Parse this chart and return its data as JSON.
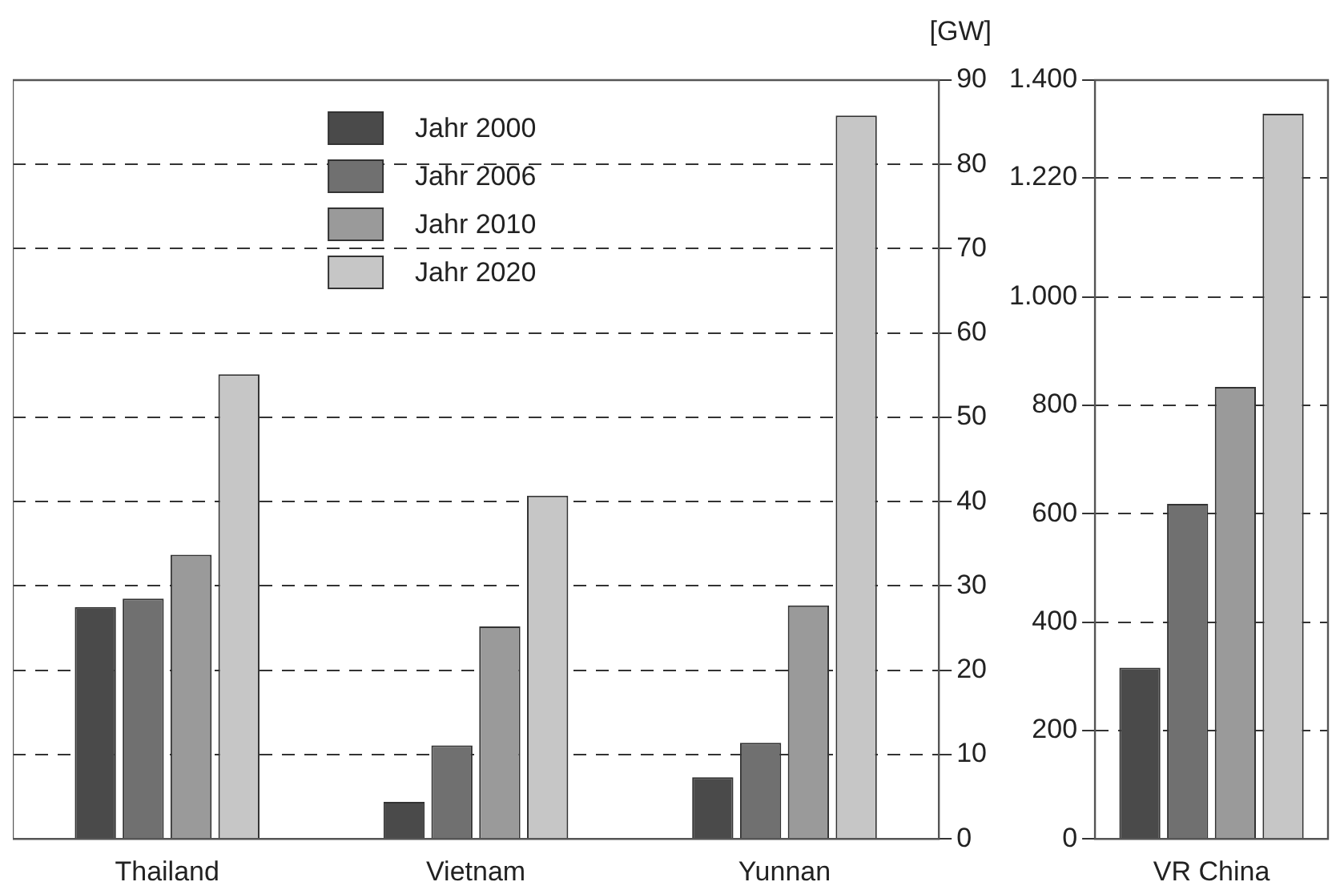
{
  "chart_data": [
    {
      "type": "bar",
      "ylabel": "[GW]",
      "categories": [
        "Thailand",
        "Vietnam",
        "Yunnan"
      ],
      "series": [
        {
          "name": "Jahr 2000",
          "color": "#4a4a4a",
          "values": [
            27.5,
            4.4,
            7.3
          ]
        },
        {
          "name": "Jahr 2006",
          "color": "#707070",
          "values": [
            28.5,
            11.1,
            11.4
          ]
        },
        {
          "name": "Jahr 2010",
          "color": "#9a9a9a",
          "values": [
            33.7,
            25.2,
            27.7
          ]
        },
        {
          "name": "Jahr 2020",
          "color": "#c6c6c6",
          "values": [
            55.1,
            40.7,
            85.8
          ]
        }
      ],
      "ylim": [
        0,
        90
      ],
      "yticks": [
        0,
        10,
        20,
        30,
        40,
        50,
        60,
        70,
        80,
        90
      ],
      "grid": "y",
      "legend": "top"
    },
    {
      "type": "bar",
      "categories": [
        "VR China"
      ],
      "series": [
        {
          "color": "#4a4a4a",
          "values": [
            316
          ]
        },
        {
          "color": "#707070",
          "values": [
            618
          ]
        },
        {
          "color": "#9a9a9a",
          "values": [
            834
          ]
        },
        {
          "color": "#c6c6c6",
          "values": [
            1338
          ]
        }
      ],
      "ylim": [
        0,
        1400
      ],
      "yticks": [
        0,
        200,
        400,
        600,
        800,
        {
          "value": 1000,
          "label": "1.000"
        },
        {
          "value": 1220,
          "label": "1.220"
        },
        {
          "value": 1400,
          "label": "1.400"
        }
      ],
      "grid": "y"
    }
  ]
}
